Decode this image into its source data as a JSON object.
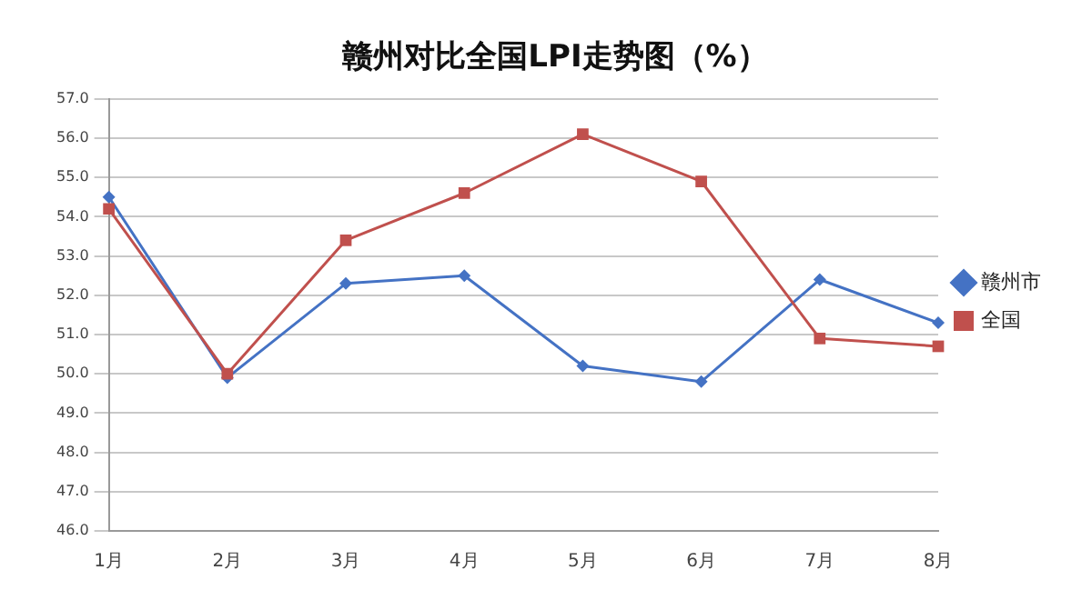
{
  "chart_data": {
    "type": "line",
    "title": "赣州对比全国LPI走势图（%）",
    "categories": [
      "1月",
      "2月",
      "3月",
      "4月",
      "5月",
      "6月",
      "7月",
      "8月"
    ],
    "series": [
      {
        "name": "赣州市",
        "color": "#4472c4",
        "marker": "diamond",
        "values": [
          54.5,
          49.9,
          52.3,
          52.5,
          50.2,
          49.8,
          52.4,
          51.3
        ]
      },
      {
        "name": "全国",
        "color": "#c0504d",
        "marker": "square",
        "values": [
          54.2,
          50.0,
          53.4,
          54.6,
          56.1,
          54.9,
          50.9,
          50.7
        ]
      }
    ],
    "ylim": [
      46,
      57
    ],
    "yticks": [
      {
        "value": 46,
        "label": "46.0"
      },
      {
        "value": 47,
        "label": "47.0"
      },
      {
        "value": 48,
        "label": "48.0"
      },
      {
        "value": 49,
        "label": "49.0"
      },
      {
        "value": 50,
        "label": "50.0"
      },
      {
        "value": 51,
        "label": "51.0"
      },
      {
        "value": 52,
        "label": "52.0"
      },
      {
        "value": 53,
        "label": "53.0"
      },
      {
        "value": 54,
        "label": "54.0"
      },
      {
        "value": 55,
        "label": "55.0"
      },
      {
        "value": 56,
        "label": "56.0"
      },
      {
        "value": 57,
        "label": "57.0"
      }
    ],
    "grid": "y",
    "legend": "right",
    "line_style": "solid"
  }
}
